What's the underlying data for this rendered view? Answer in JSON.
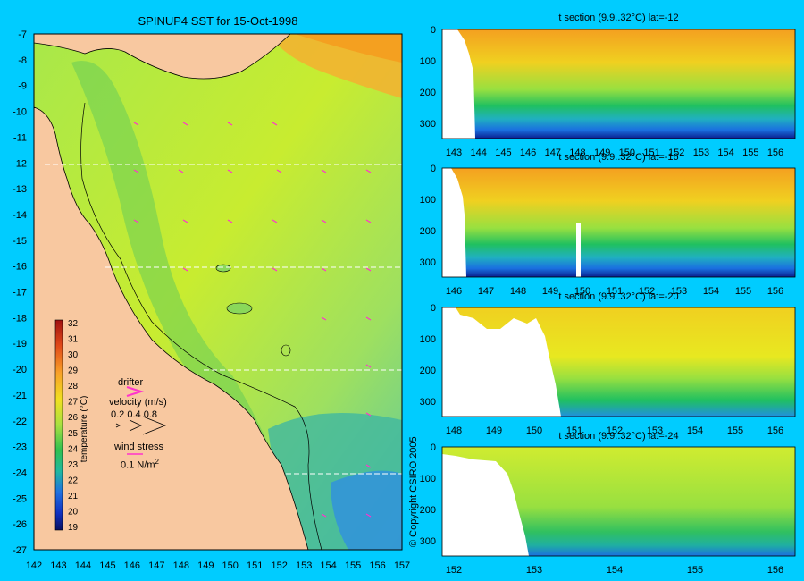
{
  "map": {
    "title": "SPINUP4 SST for 15-Oct-1998",
    "lat_ticks": [
      "-7",
      "-8",
      "-9",
      "-10",
      "-11",
      "-12",
      "-13",
      "-14",
      "-15",
      "-16",
      "-17",
      "-18",
      "-19",
      "-20",
      "-21",
      "-22",
      "-23",
      "-24",
      "-25",
      "-26",
      "-27"
    ],
    "lon_ticks": [
      "142",
      "143",
      "144",
      "145",
      "146",
      "147",
      "148",
      "149",
      "150",
      "151",
      "152",
      "153",
      "154",
      "155",
      "156",
      "157"
    ],
    "colorbar": {
      "label": "temperature (°C)",
      "ticks": [
        "32",
        "31",
        "30",
        "29",
        "28",
        "27",
        "26",
        "25",
        "24",
        "23",
        "22",
        "21",
        "20",
        "19"
      ]
    },
    "legend": {
      "drifter": "drifter",
      "velocity_label": "velocity (m/s)",
      "velocity_values": "0.2 0.4 0.8",
      "wind_label": "wind stress",
      "wind_value": "0.1 N/m",
      "wind_exp": "2"
    },
    "copyright": "© Copyright CSIRO 2005",
    "colors": {
      "land": "#f8c8a0",
      "arrow": "#ff33cc",
      "background": "#00ccff"
    }
  },
  "sections": [
    {
      "title": "t section (9.9..32°C) lat=-12",
      "depth_ticks": [
        "0",
        "100",
        "200",
        "300"
      ],
      "lon_ticks": [
        "143",
        "144",
        "145",
        "146",
        "147",
        "148",
        "149",
        "150",
        "151",
        "152",
        "153",
        "154",
        "155",
        "156"
      ]
    },
    {
      "title": "t section (9.9..32°C) lat=-16",
      "depth_ticks": [
        "0",
        "100",
        "200",
        "300"
      ],
      "lon_ticks": [
        "146",
        "147",
        "148",
        "149",
        "150",
        "151",
        "152",
        "153",
        "154",
        "155",
        "156"
      ]
    },
    {
      "title": "t section (9.9..32°C) lat=-20",
      "depth_ticks": [
        "0",
        "100",
        "200",
        "300"
      ],
      "lon_ticks": [
        "148",
        "149",
        "150",
        "151",
        "152",
        "153",
        "154",
        "155",
        "156"
      ]
    },
    {
      "title": "t section (9.9..32°C) lat=-24",
      "depth_ticks": [
        "0",
        "100",
        "200",
        "300"
      ],
      "lon_ticks": [
        "152",
        "153",
        "154",
        "155",
        "156"
      ]
    }
  ]
}
